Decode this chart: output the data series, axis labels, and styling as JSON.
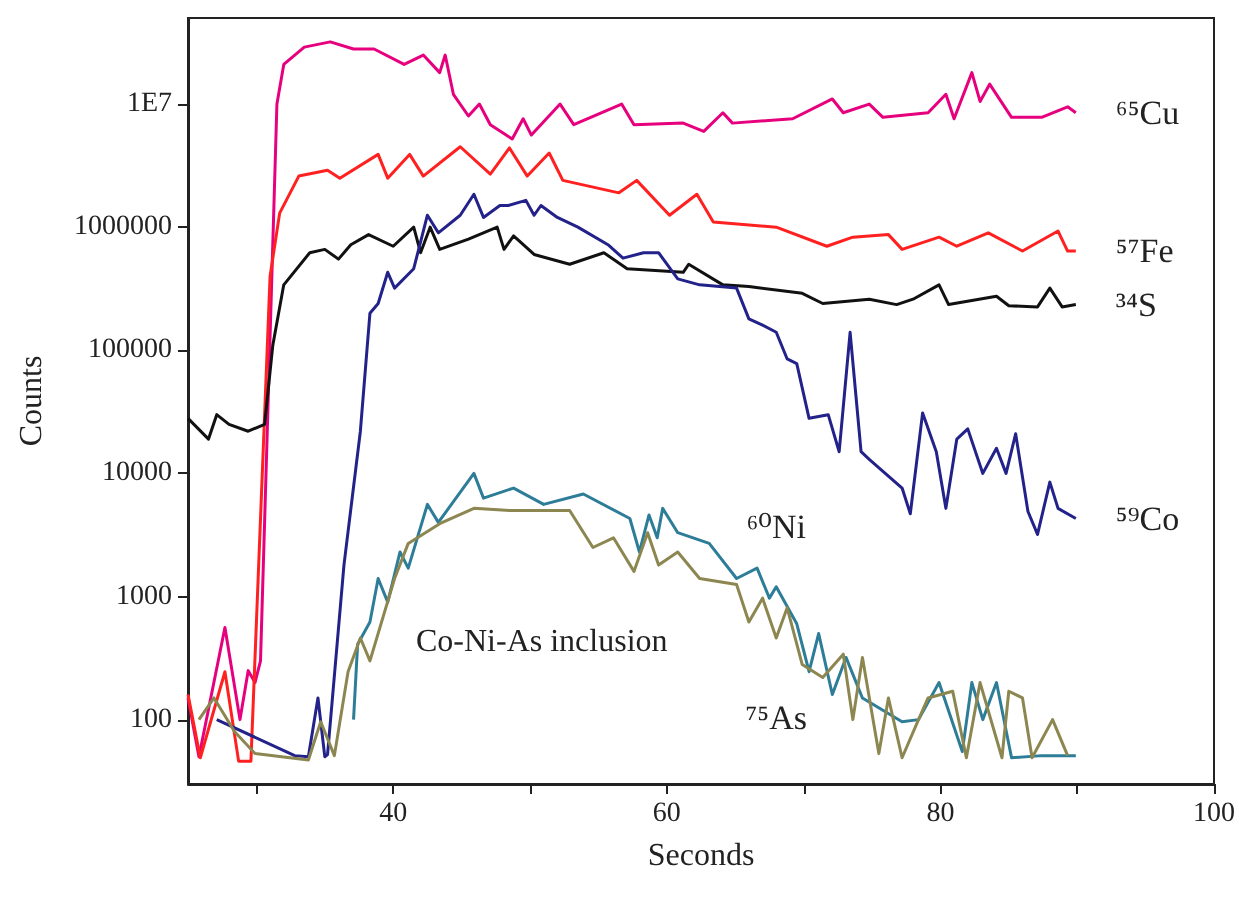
{
  "chart_data": {
    "type": "line",
    "xlabel": "Seconds",
    "ylabel": "Counts",
    "log": "y",
    "grid": false,
    "legend": false,
    "marker": "none",
    "line_style": "solid",
    "xlim": [
      25,
      100
    ],
    "xticks": [
      {
        "value": 30,
        "label": null
      },
      40,
      {
        "value": 50,
        "label": null
      },
      60,
      {
        "value": 70,
        "label": null
      },
      80,
      {
        "value": 90,
        "label": null
      },
      100
    ],
    "ylim": [
      30,
      50000000
    ],
    "yticks": [
      100,
      1000,
      10000,
      100000,
      1000000,
      {
        "value": 10000000,
        "label": "1E7"
      }
    ],
    "annotations": [
      "Co-Ni-As inclusion"
    ],
    "series": [
      {
        "name": "⁶⁵Cu",
        "color": "#e6007e",
        "x": [
          25.0,
          25.8,
          27.7,
          28.8,
          29.4,
          29.9,
          30.3,
          31.5,
          32.0,
          33.5,
          35.4,
          37.1,
          38.6,
          40.8,
          42.2,
          43.4,
          43.8,
          44.4,
          45.5,
          46.3,
          47.1,
          48.7,
          49.5,
          50.1,
          52.2,
          53.2,
          56.7,
          57.6,
          61.2,
          62.7,
          64.1,
          64.8,
          69.2,
          72.1,
          72.9,
          74.8,
          75.8,
          79.1,
          80.4,
          81.0,
          82.3,
          82.9,
          83.6,
          85.2,
          87.4,
          89.3,
          89.9
        ],
        "values": [
          150,
          50,
          560,
          100,
          250,
          200,
          300,
          10000000,
          21000000,
          29000000,
          32000000,
          28000000,
          28000000,
          21000000,
          25000000,
          18000000,
          25000000,
          12000000,
          8000000,
          10000000,
          6800000,
          5200000,
          7600000,
          5600000,
          10000000,
          6800000,
          10000000,
          6800000,
          7000000,
          6000000,
          8500000,
          7000000,
          7600000,
          11000000,
          8500000,
          10000000,
          7800000,
          8500000,
          12000000,
          7600000,
          18000000,
          10500000,
          14500000,
          7800000,
          7800000,
          9500000,
          8500000
        ]
      },
      {
        "name": "⁵⁷Fe",
        "color": "#ff2020",
        "x": [
          25.0,
          25.9,
          27.7,
          28.7,
          29.6,
          31.0,
          31.7,
          33.1,
          35.2,
          36.1,
          38.9,
          39.6,
          41.2,
          42.2,
          44.9,
          47.1,
          48.5,
          49.8,
          51.4,
          52.4,
          56.5,
          57.8,
          60.2,
          62.2,
          63.4,
          68.0,
          71.7,
          73.6,
          76.2,
          77.2,
          79.9,
          81.2,
          83.5,
          86.0,
          88.6,
          89.3,
          89.9
        ],
        "values": [
          160,
          49,
          245,
          46,
          46,
          400000,
          1300000,
          2600000,
          2900000,
          2500000,
          3900000,
          2500000,
          3900000,
          2600000,
          4500000,
          2700000,
          4400000,
          2600000,
          4000000,
          2400000,
          1900000,
          2400000,
          1250000,
          1850000,
          1100000,
          1000000,
          700000,
          830000,
          870000,
          660000,
          830000,
          700000,
          900000,
          640000,
          930000,
          640000,
          640000
        ]
      },
      {
        "name": "³⁴S",
        "color": "#111111",
        "x": [
          25.0,
          26.5,
          27.1,
          28.0,
          29.4,
          30.6,
          31.2,
          32.0,
          33.9,
          35.0,
          36.0,
          36.9,
          38.2,
          40.0,
          41.5,
          42.0,
          42.7,
          43.4,
          45.5,
          47.6,
          48.1,
          48.8,
          50.3,
          52.9,
          55.4,
          57.1,
          61.2,
          61.6,
          64.1,
          66.0,
          69.9,
          71.4,
          74.8,
          76.8,
          78.0,
          79.9,
          80.6,
          84.1,
          85.0,
          87.1,
          88.0,
          88.9,
          89.9
        ],
        "values": [
          28000,
          19000,
          30000,
          25000,
          22000,
          25000,
          110000,
          340000,
          620000,
          660000,
          550000,
          720000,
          870000,
          700000,
          1000000,
          620000,
          1000000,
          660000,
          800000,
          1000000,
          660000,
          850000,
          600000,
          500000,
          620000,
          460000,
          430000,
          500000,
          340000,
          330000,
          290000,
          240000,
          260000,
          235000,
          260000,
          340000,
          235000,
          275000,
          230000,
          225000,
          320000,
          225000,
          235000
        ]
      },
      {
        "name": "⁵⁹Co",
        "color": "#22228a",
        "x": [
          27.1,
          32.8,
          33.8,
          34.5,
          35.0,
          35.2,
          36.4,
          37.6,
          38.3,
          38.9,
          39.6,
          40.1,
          41.5,
          42.5,
          43.3,
          44.9,
          45.9,
          46.6,
          47.8,
          48.4,
          49.7,
          50.3,
          50.8,
          52.0,
          53.5,
          55.7,
          56.8,
          58.3,
          59.4,
          60.8,
          62.4,
          65.1,
          66.0,
          67.0,
          68.0,
          68.8,
          69.5,
          70.4,
          71.8,
          72.6,
          73.4,
          74.2,
          74.8,
          77.2,
          77.8,
          78.7,
          79.7,
          80.4,
          81.2,
          82.0,
          83.1,
          84.1,
          84.8,
          85.5,
          86.4,
          87.1,
          88.0,
          88.6,
          89.9
        ],
        "values": [
          100,
          51,
          50,
          150,
          50,
          52,
          1800,
          22000,
          200000,
          240000,
          430000,
          320000,
          460000,
          1250000,
          900000,
          1250000,
          1850000,
          1200000,
          1500000,
          1500000,
          1650000,
          1250000,
          1500000,
          1200000,
          1000000,
          720000,
          560000,
          620000,
          620000,
          380000,
          340000,
          320000,
          180000,
          160000,
          140000,
          85000,
          78000,
          28000,
          30000,
          15000,
          140000,
          15000,
          13000,
          7600,
          4700,
          31000,
          15000,
          5200,
          19000,
          23000,
          10000,
          16000,
          10000,
          21000,
          4900,
          3200,
          8500,
          5200,
          4300
        ]
      },
      {
        "name": "⁶⁰Ni",
        "color": "#2e7d98",
        "x": [
          37.1,
          37.4,
          38.3,
          38.9,
          39.6,
          40.5,
          41.1,
          42.5,
          43.3,
          45.9,
          46.6,
          48.8,
          51.0,
          53.9,
          57.3,
          58.0,
          58.7,
          59.3,
          59.7,
          60.8,
          63.1,
          65.1,
          66.6,
          67.5,
          68.0,
          69.5,
          70.4,
          71.1,
          72.1,
          73.1,
          74.3,
          77.2,
          78.4,
          79.9,
          81.6,
          82.3,
          83.1,
          84.1,
          85.2,
          87.4,
          89.9
        ],
        "values": [
          100,
          410,
          620,
          1400,
          900,
          2300,
          1700,
          5600,
          4000,
          10000,
          6300,
          7600,
          5600,
          6800,
          4300,
          2300,
          4600,
          3000,
          5200,
          3300,
          2700,
          1400,
          1700,
          970,
          1200,
          600,
          245,
          500,
          160,
          320,
          150,
          96,
          100,
          200,
          55,
          200,
          100,
          200,
          49,
          51,
          51
        ]
      },
      {
        "name": "⁷⁵As",
        "color": "#8c8650",
        "x": [
          25.8,
          26.9,
          28.4,
          29.9,
          33.8,
          34.7,
          35.7,
          36.7,
          37.6,
          38.3,
          40.1,
          41.1,
          43.4,
          45.9,
          48.5,
          52.9,
          54.6,
          56.1,
          57.6,
          58.6,
          59.4,
          60.8,
          62.4,
          65.1,
          66.0,
          67.0,
          68.0,
          68.8,
          69.9,
          71.4,
          72.9,
          73.6,
          74.3,
          75.5,
          76.2,
          77.2,
          78.4,
          79.1,
          80.9,
          81.9,
          82.9,
          84.5,
          85.0,
          86.0,
          86.7,
          88.2,
          89.3
        ],
        "values": [
          100,
          150,
          80,
          53,
          47,
          96,
          51,
          245,
          460,
          300,
          1400,
          2700,
          3900,
          5200,
          5000,
          5000,
          2500,
          3000,
          1600,
          3300,
          1800,
          2300,
          1400,
          1250,
          620,
          970,
          460,
          810,
          280,
          220,
          340,
          100,
          320,
          53,
          150,
          49,
          100,
          150,
          170,
          49,
          200,
          49,
          170,
          150,
          49,
          100,
          51
        ]
      }
    ]
  }
}
